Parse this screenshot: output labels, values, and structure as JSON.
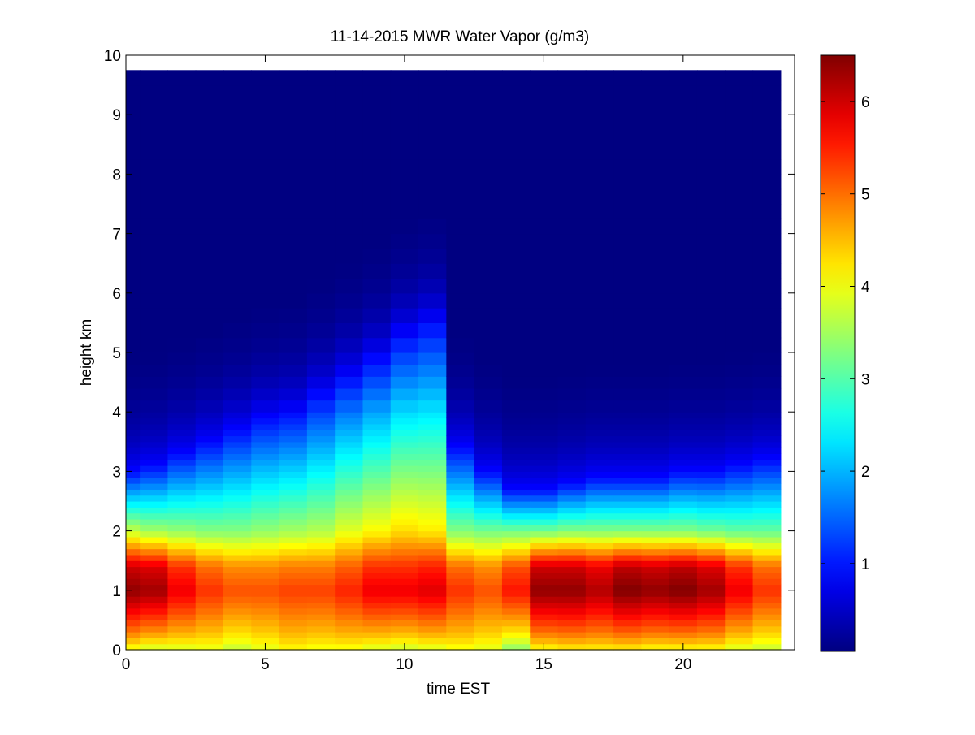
{
  "chart_data": {
    "type": "heatmap",
    "title": "11-14-2015 MWR Water Vapor (g/m3)",
    "xlabel": "time EST",
    "ylabel": "height km",
    "xlim": [
      0,
      24
    ],
    "ylim": [
      0,
      10
    ],
    "x_ticks": [
      0,
      5,
      10,
      15,
      20
    ],
    "y_ticks": [
      0,
      1,
      2,
      3,
      4,
      5,
      6,
      7,
      8,
      9,
      10
    ],
    "colorbar": {
      "range": [
        0.05,
        6.5
      ],
      "ticks": [
        1,
        2,
        3,
        4,
        5,
        6
      ],
      "colormap": "jet"
    },
    "x_hours": [
      0,
      1,
      2,
      3,
      4,
      5,
      6,
      7,
      8,
      9,
      10,
      11,
      12,
      13,
      14,
      15,
      16,
      17,
      18,
      19,
      20,
      21,
      22,
      23
    ],
    "y_heights_km": [
      0,
      0.1,
      0.2,
      0.3,
      0.4,
      0.5,
      0.6,
      0.7,
      0.8,
      0.9,
      1.0,
      1.1,
      1.2,
      1.3,
      1.4,
      1.5,
      1.6,
      1.7,
      1.8,
      1.9,
      2.0,
      2.1,
      2.2,
      2.3,
      2.4,
      2.5,
      2.6,
      2.7,
      2.8,
      2.9,
      3.0,
      3.1,
      3.2,
      3.3,
      3.4,
      3.5,
      3.6,
      3.7,
      3.8,
      3.9,
      4.0,
      4.2,
      4.4,
      4.6,
      4.8,
      5.0,
      5.25,
      5.5,
      5.75,
      6.0,
      6.25,
      6.5,
      6.75,
      7.0,
      7.25,
      7.5,
      7.75,
      8.0,
      8.25,
      8.5,
      8.75,
      9.0,
      9.25,
      9.5,
      9.75
    ],
    "profiles": {
      "surface_g_m3": [
        3.8,
        3.6,
        3.7,
        3.8,
        3.6,
        3.8,
        4.0,
        3.9,
        3.9,
        3.7,
        3.6,
        3.7,
        3.9,
        3.8,
        3.2,
        3.9,
        4.0,
        4.0,
        4.0,
        3.9,
        3.9,
        3.9,
        3.7,
        3.6
      ],
      "peak_at_1km_g_m3": [
        6.4,
        6.3,
        5.8,
        5.4,
        5.2,
        5.2,
        5.3,
        5.3,
        5.5,
        5.8,
        5.8,
        5.9,
        5.4,
        5.2,
        5.6,
        6.4,
        6.4,
        6.2,
        6.5,
        6.4,
        6.5,
        6.3,
        5.8,
        5.4
      ],
      "level_2km_g_m3": [
        3.7,
        3.5,
        3.4,
        3.3,
        3.3,
        3.4,
        3.5,
        3.6,
        3.9,
        4.1,
        4.3,
        4.2,
        3.3,
        3.2,
        3.2,
        3.2,
        3.3,
        3.3,
        3.3,
        3.3,
        3.3,
        3.2,
        3.1,
        3.1
      ],
      "moist_layer_top_km": [
        3.0,
        3.1,
        3.3,
        3.5,
        3.7,
        3.9,
        4.0,
        4.3,
        4.6,
        4.9,
        5.3,
        5.5,
        3.4,
        3.0,
        2.7,
        2.7,
        2.8,
        2.9,
        2.9,
        2.9,
        3.0,
        3.0,
        3.1,
        3.2
      ]
    }
  }
}
